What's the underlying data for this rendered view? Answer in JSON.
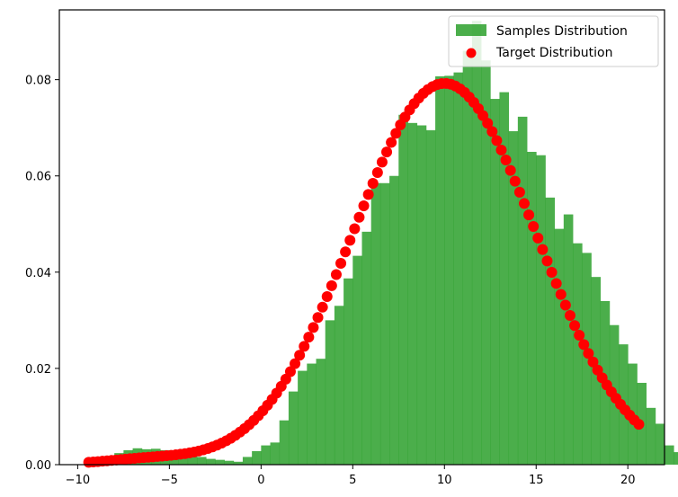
{
  "chart_data": {
    "type": "bar",
    "xlim": [
      -11,
      22
    ],
    "ylim": [
      0,
      0.0945
    ],
    "xticks": [
      -10,
      -5,
      0,
      5,
      10,
      15,
      20
    ],
    "xtick_labels": [
      "−10",
      "−5",
      "0",
      "5",
      "10",
      "15",
      "20"
    ],
    "yticks": [
      0,
      0.02,
      0.04,
      0.06,
      0.08
    ],
    "ytick_labels": [
      "0.00",
      "0.02",
      "0.04",
      "0.06",
      "0.08"
    ],
    "grid": false,
    "legend_position": "top-right",
    "legend": [
      {
        "label": "Samples Distribution",
        "kind": "bar",
        "color": "#2ca02c"
      },
      {
        "label": "Target Distribution",
        "kind": "scatter",
        "color": "#ff0000"
      }
    ],
    "series": [
      {
        "name": "Samples Distribution",
        "type": "histogram",
        "color": "#2ca02c",
        "alpha": 0.85,
        "bin_start": -9.5,
        "bin_width": 0.5,
        "values": [
          0.0008,
          0.0014,
          0.0018,
          0.0024,
          0.003,
          0.0034,
          0.0032,
          0.0033,
          0.003,
          0.0028,
          0.0024,
          0.002,
          0.0016,
          0.0012,
          0.001,
          0.0008,
          0.0006,
          0.0016,
          0.0028,
          0.004,
          0.0046,
          0.0092,
          0.0152,
          0.0195,
          0.021,
          0.022,
          0.03,
          0.033,
          0.0387,
          0.0434,
          0.0484,
          0.0585,
          0.0585,
          0.06,
          0.0727,
          0.071,
          0.0705,
          0.0695,
          0.0807,
          0.0808,
          0.0815,
          0.086,
          0.0922,
          0.084,
          0.076,
          0.0774,
          0.0693,
          0.0723,
          0.065,
          0.0643,
          0.0555,
          0.049,
          0.052,
          0.046,
          0.044,
          0.039,
          0.034,
          0.029,
          0.025,
          0.021,
          0.017,
          0.0118,
          0.0085,
          0.004,
          0.0026
        ]
      },
      {
        "name": "Target Distribution",
        "type": "scatter",
        "color": "#ff0000",
        "x_start": -9.4,
        "x_end": 20.6,
        "n_points": 121,
        "curve": [
          {
            "mean": 10,
            "sd": 5,
            "weight": 0.993
          },
          {
            "mean": -6,
            "sd": 2.5,
            "weight": 0.007
          }
        ]
      }
    ]
  }
}
